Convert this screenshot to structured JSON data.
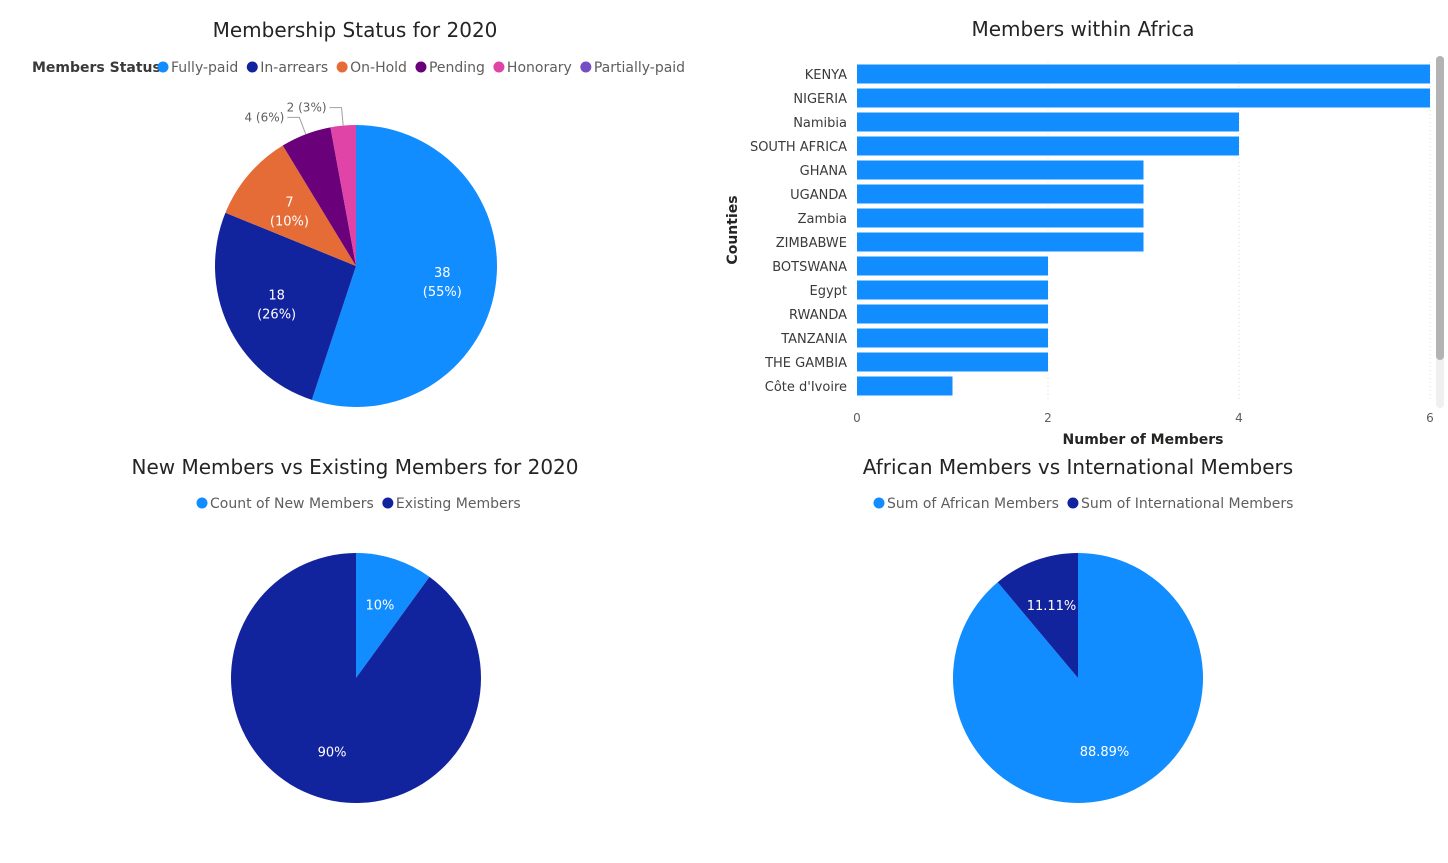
{
  "chart_data": [
    {
      "type": "pie",
      "title": "Membership Status for 2020",
      "legend_title": "Members Status",
      "legend_position": "top",
      "slices": [
        {
          "label": "Fully-paid",
          "value": 38,
          "percent": "55%",
          "color": "#118dff"
        },
        {
          "label": "In-arrears",
          "value": 18,
          "percent": "26%",
          "color": "#12239e"
        },
        {
          "label": "On-Hold",
          "value": 7,
          "percent": "10%",
          "color": "#e66c37"
        },
        {
          "label": "Pending",
          "value": 4,
          "percent": "6%",
          "color": "#6b007b"
        },
        {
          "label": "Honorary",
          "value": 2,
          "percent": "3%",
          "color": "#e044a7"
        },
        {
          "label": "Partially-paid",
          "value": 0,
          "percent": "",
          "color": "#744ec2"
        }
      ]
    },
    {
      "type": "bar",
      "orientation": "horizontal",
      "title": "Members within Africa",
      "xlabel": "Number of Members",
      "ylabel": "Counties",
      "xlim": [
        0,
        6
      ],
      "xticks": [
        0,
        2,
        4,
        6
      ],
      "grid": true,
      "color": "#118dff",
      "categories": [
        "KENYA",
        "NIGERIA",
        "Namibia",
        "SOUTH AFRICA",
        "GHANA",
        "UGANDA",
        "Zambia",
        "ZIMBABWE",
        "BOTSWANA",
        "Egypt",
        "RWANDA",
        "TANZANIA",
        "THE GAMBIA",
        "Côte d'Ivoire"
      ],
      "values": [
        6,
        6,
        4,
        4,
        3,
        3,
        3,
        3,
        2,
        2,
        2,
        2,
        2,
        1
      ]
    },
    {
      "type": "pie",
      "title": "New Members vs Existing Members for 2020",
      "legend_position": "top",
      "slices": [
        {
          "label": "Count of New Members",
          "value": 10,
          "percent": "10%",
          "color": "#118dff"
        },
        {
          "label": "Existing Members",
          "value": 90,
          "percent": "90%",
          "color": "#12239e"
        }
      ]
    },
    {
      "type": "pie",
      "title": "African Members vs International Members",
      "legend_position": "top",
      "slices": [
        {
          "label": "Sum of African Members",
          "value": 88.89,
          "percent": "88.89%",
          "color": "#118dff"
        },
        {
          "label": "Sum of International Members",
          "value": 11.11,
          "percent": "11.11%",
          "color": "#12239e"
        }
      ]
    }
  ]
}
